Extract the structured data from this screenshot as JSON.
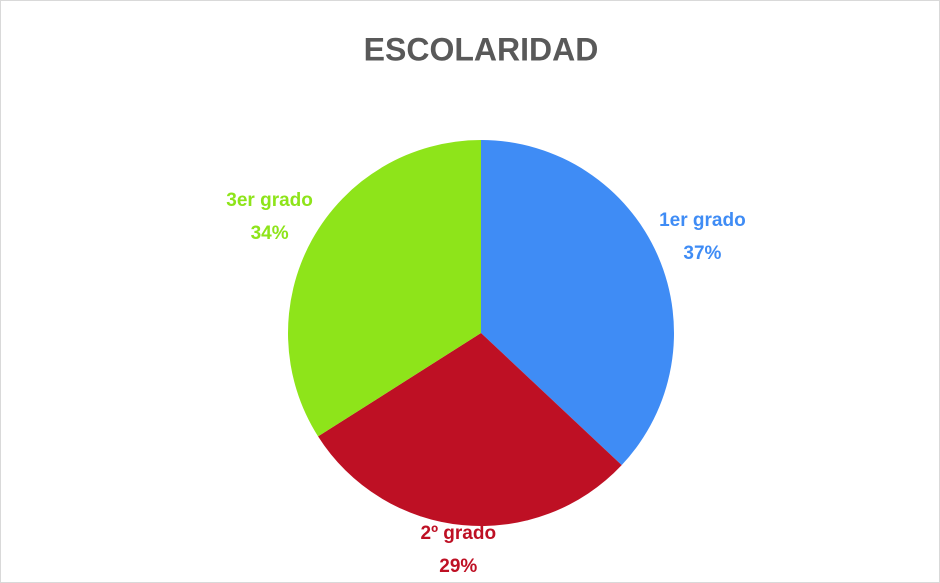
{
  "chart_data": {
    "type": "pie",
    "title": "ESCOLARIDAD",
    "categories": [
      "1er grado",
      "2º grado",
      "3er grado"
    ],
    "values": [
      37,
      29,
      34
    ],
    "value_labels": [
      "37%",
      "29%",
      "34%"
    ],
    "colors": [
      "#3f8cf5",
      "#be1024",
      "#8ee41a"
    ]
  }
}
